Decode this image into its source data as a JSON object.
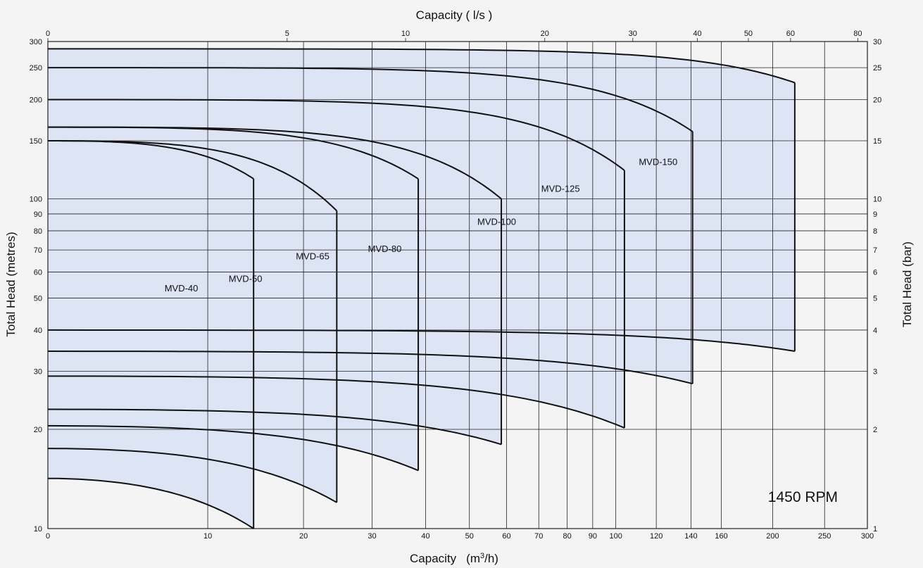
{
  "chart_data": {
    "type": "area",
    "title": "",
    "annotation": "1450 RPM",
    "x_bottom": {
      "label": "Capacity",
      "unit_base": "(m",
      "unit_sup": "3",
      "unit_end": "/h)",
      "scale": "log",
      "range": [
        0,
        300
      ],
      "ticks": [
        "0",
        "10",
        "20",
        "30",
        "40",
        "50",
        "60",
        "70",
        "80",
        "90",
        "100",
        "120",
        "140",
        "160",
        "200",
        "250",
        "300"
      ]
    },
    "x_top": {
      "label": "Capacity    ( l/s )",
      "ticks": [
        "0",
        "5",
        "10",
        "20",
        "30",
        "40",
        "50",
        "60",
        "80"
      ]
    },
    "y_left": {
      "label": "Total  Head  (metres)",
      "scale": "log",
      "range": [
        10,
        300
      ],
      "ticks": [
        "10",
        "20",
        "30",
        "40",
        "50",
        "60",
        "70",
        "80",
        "90",
        "100",
        "150",
        "200",
        "250",
        "300"
      ]
    },
    "y_right": {
      "label": "Total  Head  (bar)",
      "ticks": [
        "1",
        "2",
        "3",
        "4",
        "5",
        "6",
        "7",
        "8",
        "9",
        "10",
        "15",
        "20",
        "25",
        "30"
      ]
    },
    "series": [
      {
        "name": "MVD-40",
        "q_max_m3h": 14.3,
        "head_max_m": 150,
        "head_at_qmax_m": 115,
        "head_min_at_0_m": 14.2,
        "head_min_at_qmax_m": 10
      },
      {
        "name": "MVD-50",
        "q_max_m3h": 24.5,
        "head_max_m": 150,
        "head_at_qmax_m": 92,
        "head_min_at_0_m": 17.5,
        "head_min_at_qmax_m": 12
      },
      {
        "name": "MVD-65",
        "q_max_m3h": 38.5,
        "head_max_m": 165,
        "head_at_qmax_m": 115,
        "head_min_at_0_m": 20.5,
        "head_min_at_qmax_m": 15
      },
      {
        "name": "MVD-80",
        "q_max_m3h": 58.5,
        "head_max_m": 165,
        "head_at_qmax_m": 100,
        "head_min_at_0_m": 23,
        "head_min_at_qmax_m": 18
      },
      {
        "name": "MVD-100",
        "q_max_m3h": 104,
        "head_max_m": 200,
        "head_at_qmax_m": 122,
        "head_min_at_0_m": 29,
        "head_min_at_qmax_m": 20.2
      },
      {
        "name": "MVD-125",
        "q_max_m3h": 141,
        "head_max_m": 250,
        "head_at_qmax_m": 160,
        "head_min_at_0_m": 34.5,
        "head_min_at_qmax_m": 27.5
      },
      {
        "name": "MVD-150",
        "q_max_m3h": 220,
        "head_max_m": 285,
        "head_at_qmax_m": 225,
        "head_min_at_0_m": 40,
        "head_min_at_qmax_m": 34.5
      }
    ],
    "colors": {
      "fill": "#dde4f4",
      "line": "#111111",
      "grid": "#222222",
      "plot_bg": "#f4f4f4"
    }
  }
}
